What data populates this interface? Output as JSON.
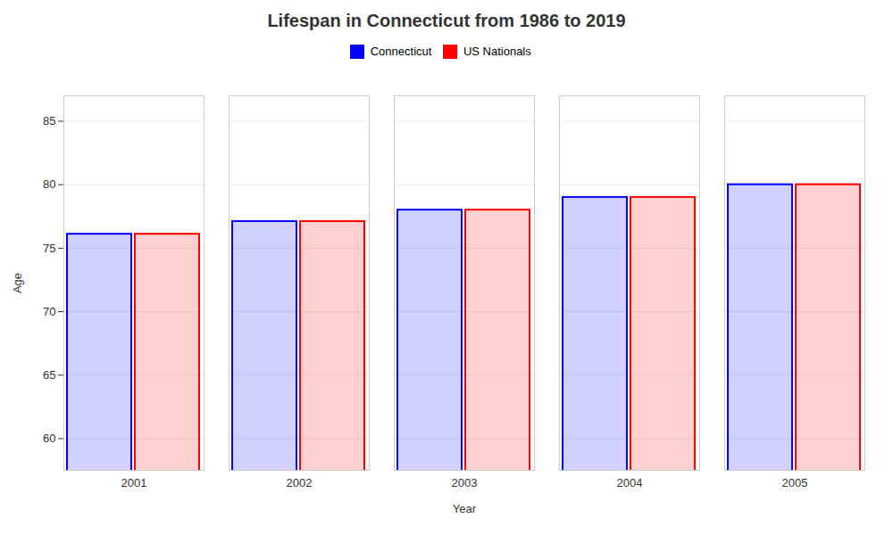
{
  "chart_data": {
    "type": "bar",
    "title": "Lifespan in Connecticut from 1986 to 2019",
    "xlabel": "Year",
    "ylabel": "Age",
    "categories": [
      "2001",
      "2002",
      "2003",
      "2004",
      "2005"
    ],
    "series": [
      {
        "name": "Connecticut",
        "color": "#0000ff",
        "values": [
          76.1,
          77.1,
          78.0,
          79.0,
          80.0
        ]
      },
      {
        "name": "US Nationals",
        "color": "#ff0000",
        "values": [
          76.1,
          77.1,
          78.0,
          79.0,
          80.0
        ]
      }
    ],
    "ylim": [
      57.5,
      87
    ],
    "yticks": [
      60,
      65,
      70,
      75,
      80,
      85
    ],
    "grid": true,
    "legend": "upper center"
  }
}
